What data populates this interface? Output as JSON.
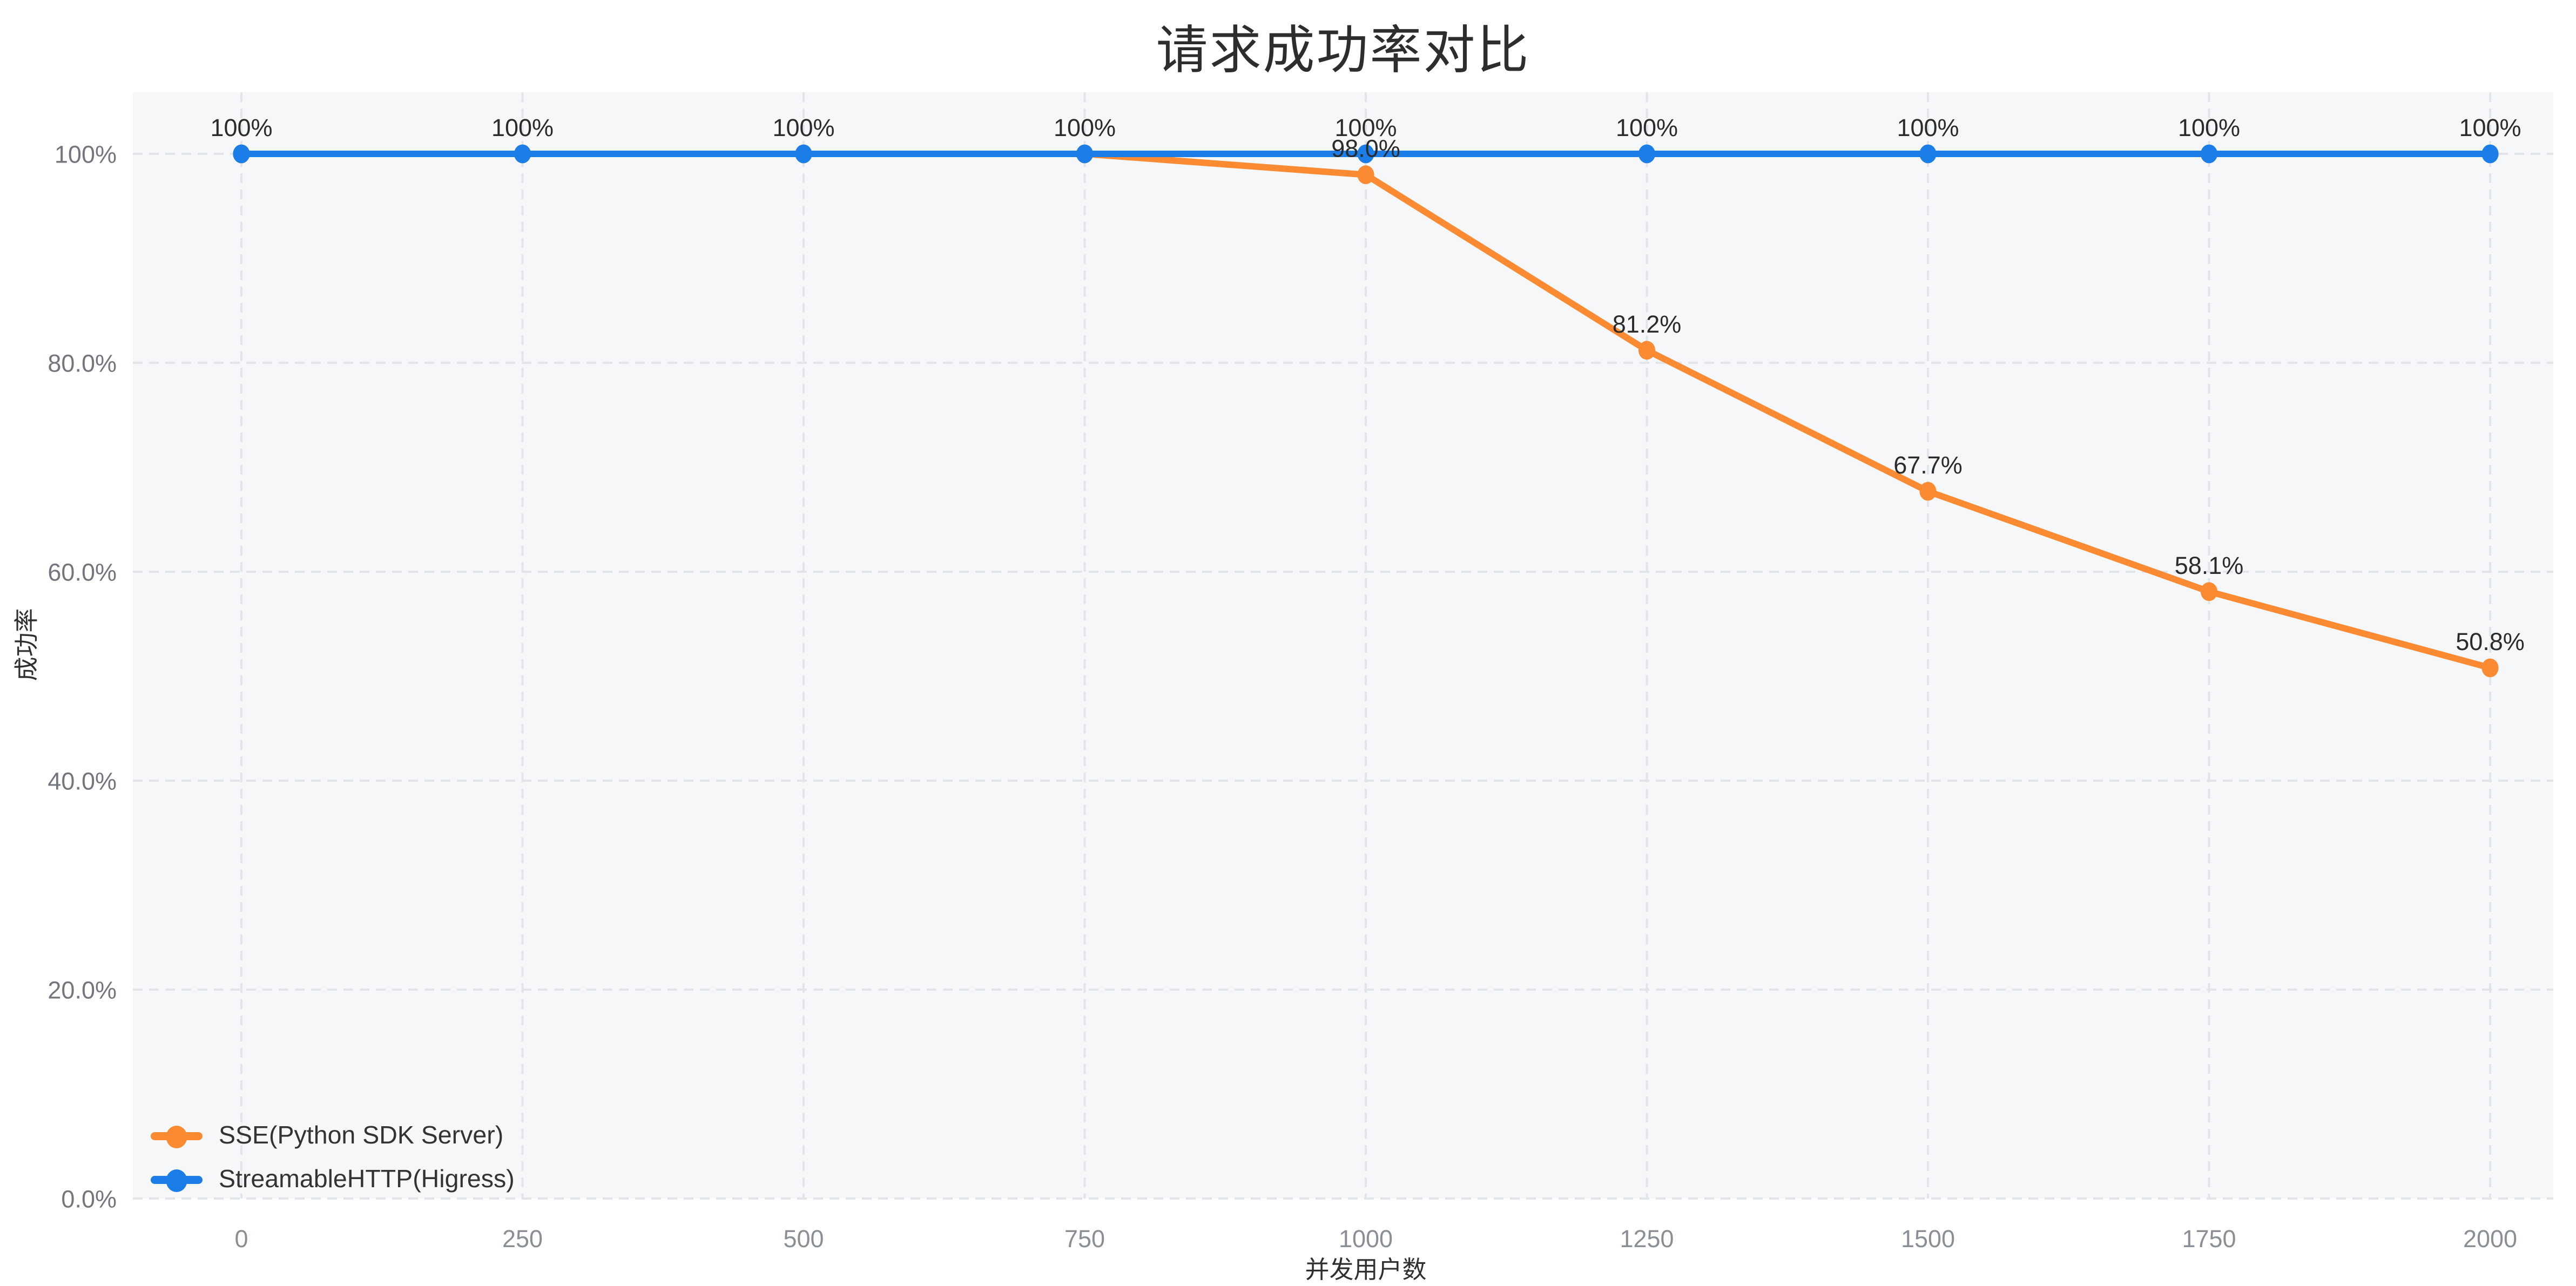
{
  "title": {
    "text": "请求成功率对比",
    "color": "#2D2D2D"
  },
  "axes": {
    "y_name": "成功率",
    "x_name": "并发用户数",
    "x_tick_labels": [
      "0",
      "250",
      "500",
      "750",
      "1000",
      "1250",
      "1500",
      "1750",
      "2000"
    ],
    "y_tick_labels": [
      "0.0%",
      "20.0%",
      "40.0%",
      "60.0%",
      "80.0%",
      "100%"
    ],
    "x_tick_color": "#8A8E95",
    "y_tick_color": "#73777D"
  },
  "colors": {
    "background": "#FFFFFF",
    "plot_background": "#F6F7F9",
    "gridline": "#E1E4E9",
    "sse_orange": "#FA8B32",
    "higress_blue": "#1B7DE8",
    "data_label_text": "#2B2B2B"
  },
  "legend": {
    "items": [
      {
        "label": "SSE(Python SDK Server)",
        "color": "#FA8B32"
      },
      {
        "label": "StreamableHTTP(Higress)",
        "color": "#1B7DE8"
      }
    ]
  },
  "chart_data": {
    "type": "line",
    "title": "请求成功率对比",
    "xlabel": "并发用户数",
    "ylabel": "成功率",
    "x": [
      0,
      250,
      500,
      750,
      1000,
      1250,
      1500,
      1750,
      2000
    ],
    "ylim": [
      0,
      100
    ],
    "y_ticks": [
      0,
      20,
      40,
      60,
      80,
      100
    ],
    "y_tick_labels": [
      "0.0%",
      "20.0%",
      "40.0%",
      "60.0%",
      "80.0%",
      "100%"
    ],
    "grid": "dashed, horizontal and vertical",
    "legend_position": "bottom-left",
    "series": [
      {
        "name": "SSE(Python SDK Server)",
        "color": "#FA8B32",
        "values": [
          100,
          100,
          100,
          100,
          98.0,
          81.2,
          67.7,
          58.1,
          50.8
        ],
        "point_labels": [
          null,
          null,
          null,
          null,
          "98.0%",
          "81.2%",
          "67.7%",
          "58.1%",
          "50.8%"
        ]
      },
      {
        "name": "StreamableHTTP(Higress)",
        "color": "#1B7DE8",
        "values": [
          100,
          100,
          100,
          100,
          100,
          100,
          100,
          100,
          100
        ],
        "point_labels": [
          "100%",
          "100%",
          "100%",
          "100%",
          "100%",
          "100%",
          "100%",
          "100%",
          "100%"
        ]
      }
    ]
  }
}
